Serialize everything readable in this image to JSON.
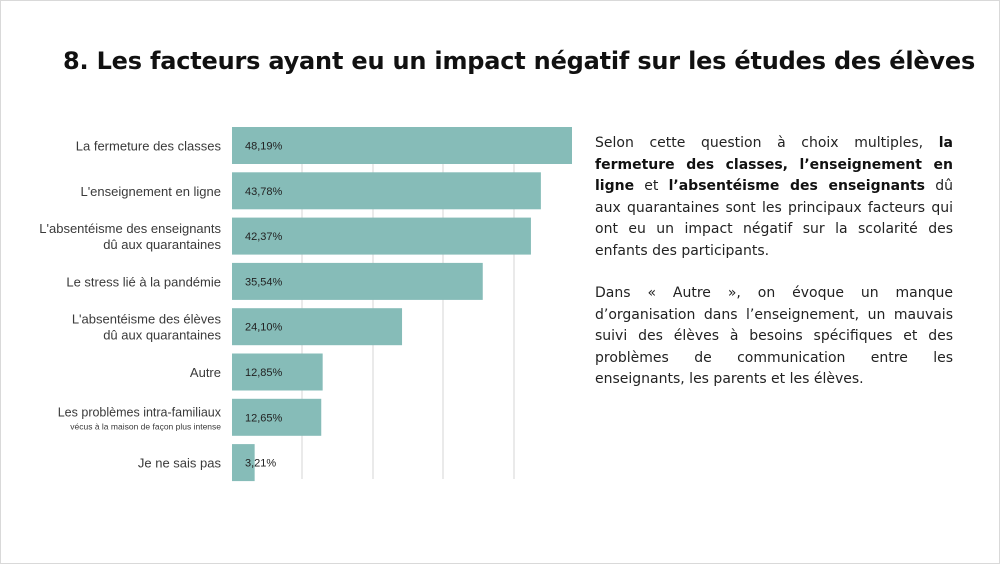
{
  "title": "8. Les facteurs ayant eu un impact négatif sur les études des élèves",
  "chart_data": {
    "type": "bar",
    "orientation": "horizontal",
    "title": "",
    "xlabel": "",
    "ylabel": "",
    "grid": true,
    "bar_color": "#86bcb8",
    "xlim": [
      0,
      48.19
    ],
    "categories": [
      {
        "line1": "La fermeture des classes",
        "line2": ""
      },
      {
        "line1": "L'enseignement en ligne",
        "line2": ""
      },
      {
        "line1": "L'absentéisme des enseignants",
        "line2": "dû aux quarantaines"
      },
      {
        "line1": "Le stress lié à la pandémie",
        "line2": ""
      },
      {
        "line1": "L'absentéisme des élèves",
        "line2": "dû aux quarantaines"
      },
      {
        "line1": "Autre",
        "line2": ""
      },
      {
        "line1": "Les problèmes intra-familiaux",
        "line2": "vécus à la maison de façon plus intense"
      },
      {
        "line1": "Je ne sais pas",
        "line2": ""
      }
    ],
    "values": [
      48.19,
      43.78,
      42.37,
      35.54,
      24.1,
      12.85,
      12.65,
      3.21
    ],
    "value_labels": [
      "48,19%",
      "43,78%",
      "42,37%",
      "35,54%",
      "24,10%",
      "12,85%",
      "12,65%",
      "3,21%"
    ]
  },
  "description": {
    "p1": [
      {
        "text": "Selon cette question à choix multiples, ",
        "bold": false
      },
      {
        "text": "la fermeture des classes, l’enseignement en ligne",
        "bold": true
      },
      {
        "text": " et ",
        "bold": false
      },
      {
        "text": "l’absentéisme des enseignants",
        "bold": true
      },
      {
        "text": " dû aux quarantaines sont les principaux facteurs qui ont eu un impact négatif sur la scolarité des enfants des participants.",
        "bold": false
      }
    ],
    "p2": "Dans « Autre », on évoque un manque d’organisation dans l’enseignement, un mauvais suivi des élèves à besoins spécifiques et des problèmes de communication entre les enseignants, les parents et les élèves."
  }
}
